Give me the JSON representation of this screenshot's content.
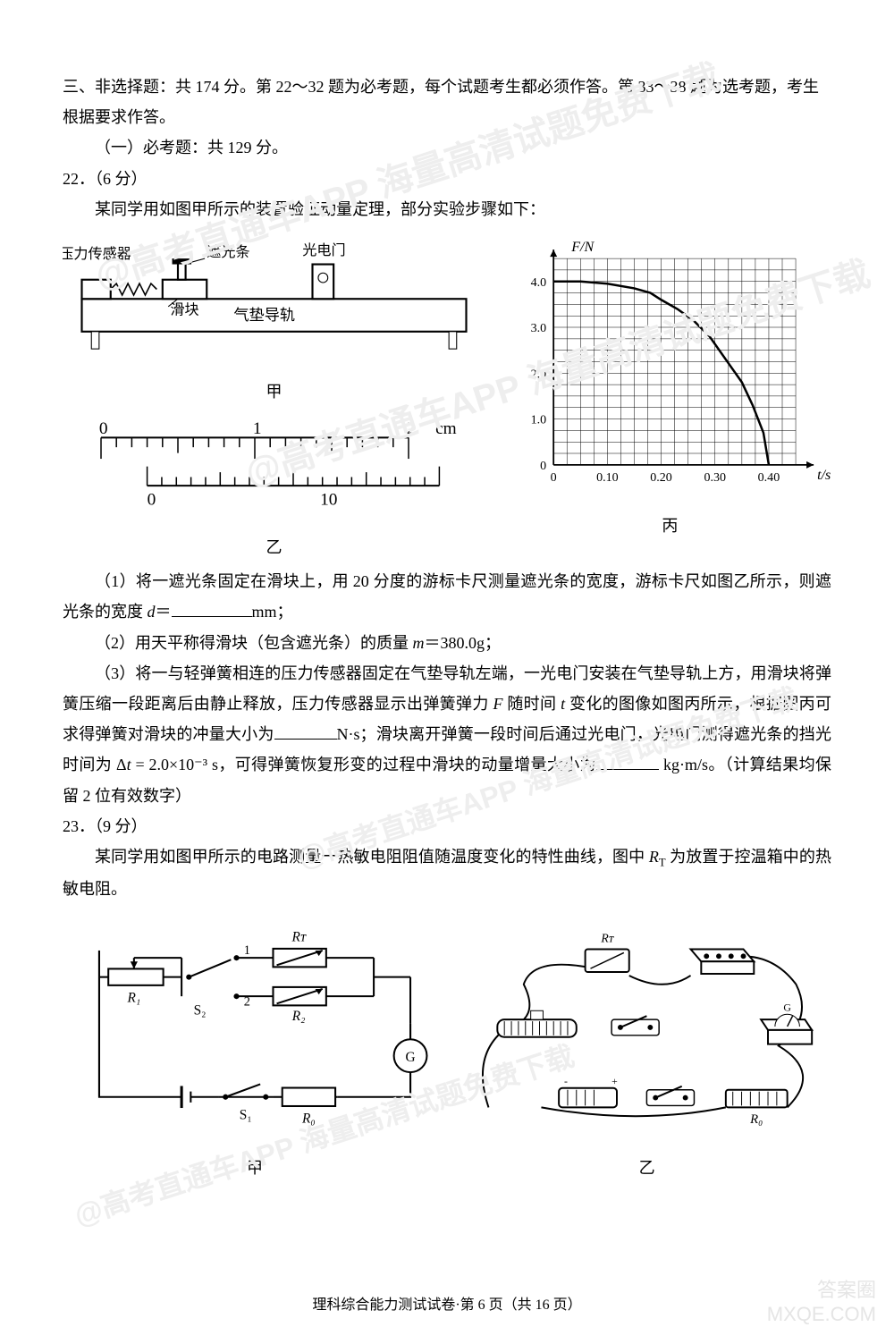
{
  "section3": {
    "heading": "三、非选择题：共 174 分。第 22～32 题为必考题，每个试题考生都必须作答。第 33～38 题为选考题，考生根据要求作答。",
    "sub": "（一）必考题：共 129 分。"
  },
  "q22": {
    "number_points": "22．（6 分）",
    "intro": "某同学用如图甲所示的装置验证动量定理，部分实验步骤如下：",
    "apparatus": {
      "pressure_sensor": "压力传感器",
      "light_bar": "遮光条",
      "photogate": "光电门",
      "slider": "滑块",
      "air_track": "气垫导轨",
      "label": "甲"
    },
    "vernier": {
      "main_labels": [
        "0",
        "1",
        "2"
      ],
      "main_unit": "cm",
      "vernier_labels": [
        "0",
        "10"
      ],
      "label": "乙",
      "main_tick_count": 20,
      "vernier_tick_count": 20,
      "scale_color": "#000000"
    },
    "graph": {
      "y_axis_label": "F/N",
      "x_axis_label": "t/s",
      "x_ticks": [
        "0",
        "0.10",
        "0.20",
        "0.30",
        "0.40"
      ],
      "y_ticks": [
        "0",
        "1.0",
        "2.0",
        "3.0",
        "4.0"
      ],
      "x_range": [
        0,
        0.45
      ],
      "y_range": [
        0,
        4.5
      ],
      "grid_minor_x": 0.025,
      "grid_minor_y": 0.25,
      "curve_points": [
        [
          0.0,
          4.0
        ],
        [
          0.05,
          4.0
        ],
        [
          0.1,
          3.95
        ],
        [
          0.15,
          3.85
        ],
        [
          0.18,
          3.75
        ],
        [
          0.2,
          3.6
        ],
        [
          0.23,
          3.4
        ],
        [
          0.26,
          3.15
        ],
        [
          0.29,
          2.8
        ],
        [
          0.32,
          2.3
        ],
        [
          0.35,
          1.8
        ],
        [
          0.37,
          1.3
        ],
        [
          0.39,
          0.7
        ],
        [
          0.4,
          0.0
        ]
      ],
      "grid_color": "#000000",
      "line_color": "#000000",
      "background": "#ffffff",
      "label": "丙"
    },
    "p1_pre": "（1）将一遮光条固定在滑块上，用 20 分度的游标卡尺测量遮光条的宽度，游标卡尺如图乙所示，则遮光条的宽度 ",
    "p1_var": "d",
    "p1_eq": "＝",
    "p1_unit": "mm；",
    "p2_pre": "（2）用天平称得滑块（包含遮光条）的质量 ",
    "p2_var": "m",
    "p2_post": "＝380.0g；",
    "p3a": "（3）将一与轻弹簧相连的压力传感器固定在气垫导轨左端，一光电门安装在气垫导轨上方，用滑块将弹簧压缩一段距离后由静止释放，压力传感器显示出弹簧弹力 ",
    "p3_F": "F",
    "p3_mid1": " 随时间 ",
    "p3_t": "t",
    "p3_mid2": " 变化的图像如图丙所示，根据图丙可求得弹簧对滑块的冲量大小为",
    "p3_unit1": "N·s；滑块离开弹簧一段时间后通过光电门，光电门测得遮光条的挡光时间为 Δ",
    "p3_dt_var": "t",
    "p3_dt_val": " = 2.0×10⁻³ s，可得弹簧恢复形变的过程中滑块的动量增量大小为",
    "p3_unit2": " kg·m/s。（计算结果均保留 2 位有效数字）"
  },
  "q23": {
    "number_points": "23．（9 分）",
    "intro_pre": "某同学用如图甲所示的电路测量一热敏电阻阻值随温度变化的特性曲线，图中 ",
    "intro_rt": "R",
    "intro_rt_sub": "T",
    "intro_post": " 为放置于控温箱中的热敏电阻。",
    "circuit": {
      "Rt": "Rᴛ",
      "R1": "R₁",
      "R2": "R₂",
      "R0": "R₀",
      "S1": "S₁",
      "S2": "S₂",
      "G": "G",
      "node1": "1",
      "node2": "2",
      "label_left": "甲",
      "label_right": "乙"
    }
  },
  "footer": "理科综合能力测试试卷·第 6 页（共 16 页）",
  "watermarks": {
    "diag": "@高考直通车APP 海量高清试题免费下载",
    "corner1": "答案圈",
    "corner2": "MXQE.COM"
  },
  "style": {
    "page_bg": "#ffffff",
    "text_color": "#000000",
    "font_size_body": 18,
    "font_size_footer": 16,
    "watermark_color": "#eeeeee"
  }
}
